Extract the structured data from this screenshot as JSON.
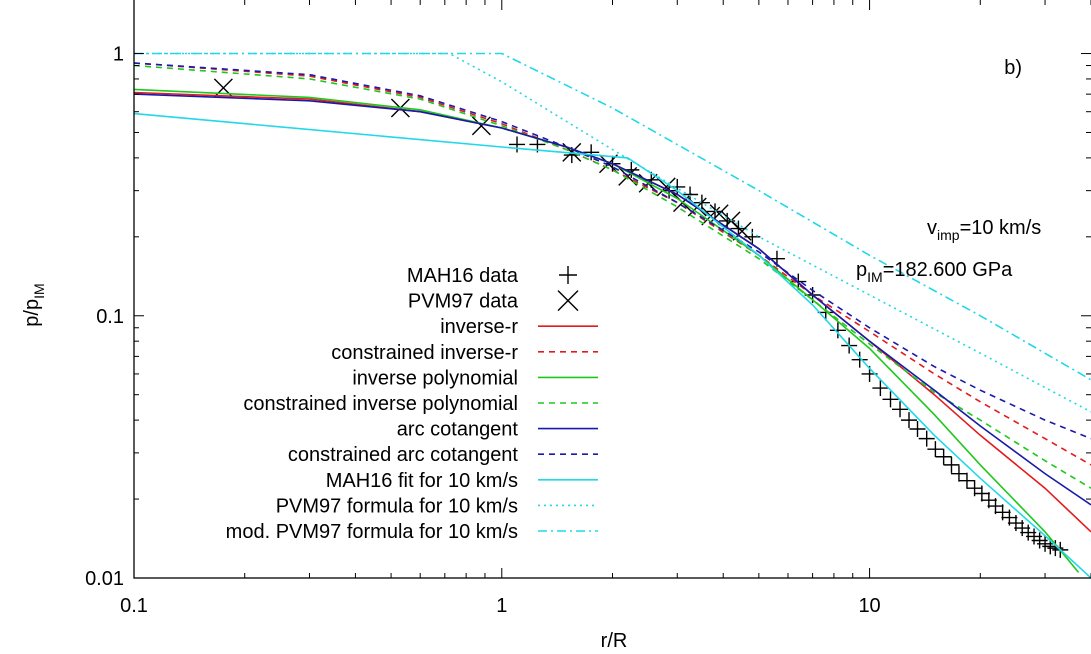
{
  "chart_data": {
    "type": "line",
    "xscale": "log",
    "yscale": "log",
    "xlim": [
      0.1,
      40
    ],
    "ylim": [
      0.01,
      1.6
    ],
    "grid": false,
    "legend_position": "left",
    "xlabel": "r/R",
    "ylabel_main": "p/p",
    "ylabel_sub": "IM",
    "x_ticks": [
      {
        "v": 0.1,
        "label": "0.1"
      },
      {
        "v": 1,
        "label": "1"
      },
      {
        "v": 10,
        "label": "10"
      }
    ],
    "y_ticks": [
      {
        "v": 0.01,
        "label": "0.01"
      },
      {
        "v": 0.1,
        "label": "0.1"
      },
      {
        "v": 1,
        "label": "1"
      }
    ],
    "panel_label": "b)",
    "annotations": {
      "vimp": {
        "main": "v",
        "sub": "imp",
        "rest": "=10 km/s"
      },
      "pim": {
        "main": "p",
        "sub": "IM",
        "rest": "=182.600 GPa"
      }
    },
    "series": [
      {
        "name": "MAH16 data",
        "kind": "points",
        "marker": "plus",
        "color": "#000000",
        "x": [
          1.1,
          1.25,
          1.55,
          1.75,
          2.0,
          2.25,
          2.55,
          2.85,
          3.0,
          3.25,
          3.5,
          3.8,
          4.1,
          4.4,
          4.8,
          5.6,
          6.4,
          7.0,
          7.6,
          8.2,
          8.8,
          9.4,
          10.0,
          10.7,
          11.4,
          12.1,
          12.8,
          13.5,
          14.3,
          15.1,
          15.9,
          16.7,
          17.5,
          18.4,
          19.3,
          20.2,
          21.1,
          22.0,
          23.0,
          24.0,
          25.0,
          26.0,
          27.0,
          28.0,
          29.0,
          30.0,
          31.0,
          32.0,
          33.0
        ],
        "y": [
          0.45,
          0.45,
          0.41,
          0.42,
          0.38,
          0.36,
          0.33,
          0.3,
          0.31,
          0.29,
          0.27,
          0.25,
          0.23,
          0.215,
          0.2,
          0.165,
          0.135,
          0.12,
          0.103,
          0.088,
          0.077,
          0.068,
          0.06,
          0.053,
          0.048,
          0.044,
          0.04,
          0.037,
          0.034,
          0.031,
          0.029,
          0.027,
          0.025,
          0.0235,
          0.022,
          0.021,
          0.0198,
          0.0188,
          0.0178,
          0.017,
          0.0162,
          0.0155,
          0.0149,
          0.0144,
          0.0139,
          0.0135,
          0.0132,
          0.013,
          0.0128
        ]
      },
      {
        "name": "PVM97 data",
        "kind": "points",
        "marker": "cross",
        "color": "#000000",
        "x": [
          0.175,
          0.53,
          0.88,
          1.55,
          1.95,
          2.2,
          2.5,
          2.8,
          3.1,
          3.4,
          3.7,
          3.9,
          4.2,
          4.5
        ],
        "y": [
          0.74,
          0.62,
          0.53,
          0.42,
          0.38,
          0.34,
          0.32,
          0.31,
          0.27,
          0.26,
          0.24,
          0.245,
          0.23,
          0.21
        ]
      },
      {
        "name": "inverse-r",
        "kind": "line",
        "color": "#e41a1c",
        "dash": "",
        "x": [
          0.1,
          0.3,
          0.6,
          1.0,
          1.5,
          2.0,
          3.0,
          5.0,
          7.0,
          10.0,
          15.0,
          20.0,
          30.0,
          40.0
        ],
        "y": [
          0.71,
          0.67,
          0.6,
          0.52,
          0.44,
          0.38,
          0.29,
          0.18,
          0.12,
          0.08,
          0.05,
          0.035,
          0.022,
          0.015
        ]
      },
      {
        "name": "constrained inverse-r",
        "kind": "line",
        "color": "#e41a1c",
        "dash": "6,5",
        "x": [
          0.1,
          0.3,
          0.6,
          1.0,
          1.5,
          2.0,
          3.0,
          5.0,
          7.0,
          10.0,
          15.0,
          20.0,
          30.0,
          40.0
        ],
        "y": [
          0.92,
          0.82,
          0.68,
          0.54,
          0.43,
          0.36,
          0.27,
          0.17,
          0.12,
          0.087,
          0.06,
          0.047,
          0.034,
          0.027
        ]
      },
      {
        "name": "inverse polynomial",
        "kind": "line",
        "color": "#1ec81e",
        "dash": "",
        "x": [
          0.1,
          0.3,
          0.6,
          1.0,
          1.5,
          2.0,
          3.0,
          5.0,
          7.0,
          10.0,
          15.0,
          20.0,
          30.0,
          37.0
        ],
        "y": [
          0.73,
          0.68,
          0.61,
          0.52,
          0.44,
          0.38,
          0.28,
          0.17,
          0.115,
          0.075,
          0.042,
          0.027,
          0.015,
          0.0105
        ]
      },
      {
        "name": "constrained inverse polynomial",
        "kind": "line",
        "color": "#1ec81e",
        "dash": "6,5",
        "x": [
          0.1,
          0.3,
          0.6,
          1.0,
          1.5,
          2.0,
          3.0,
          5.0,
          7.0,
          10.0,
          15.0,
          20.0,
          30.0,
          40.0
        ],
        "y": [
          0.9,
          0.8,
          0.67,
          0.53,
          0.43,
          0.36,
          0.26,
          0.165,
          0.115,
          0.078,
          0.051,
          0.04,
          0.028,
          0.022
        ]
      },
      {
        "name": "arc cotangent",
        "kind": "line",
        "color": "#1a1aaa",
        "dash": "",
        "x": [
          0.1,
          0.3,
          0.6,
          1.0,
          1.5,
          2.0,
          3.0,
          5.0,
          7.0,
          10.0,
          15.0,
          20.0,
          30.0,
          40.0
        ],
        "y": [
          0.7,
          0.66,
          0.6,
          0.52,
          0.44,
          0.38,
          0.29,
          0.18,
          0.12,
          0.08,
          0.052,
          0.038,
          0.025,
          0.019
        ]
      },
      {
        "name": "constrained arc cotangent",
        "kind": "line",
        "color": "#1a1aaa",
        "dash": "6,5",
        "x": [
          0.1,
          0.3,
          0.6,
          1.0,
          1.5,
          2.0,
          3.0,
          5.0,
          7.0,
          10.0,
          15.0,
          20.0,
          30.0,
          40.0
        ],
        "y": [
          0.92,
          0.83,
          0.69,
          0.55,
          0.44,
          0.37,
          0.27,
          0.175,
          0.125,
          0.09,
          0.064,
          0.052,
          0.04,
          0.034
        ]
      },
      {
        "name": "MAH16 fit for 10 km/s",
        "kind": "line",
        "color": "#20d8e8",
        "dash": "",
        "x": [
          0.1,
          1.0,
          2.2,
          3.0,
          5.0,
          7.0,
          10.0,
          15.0,
          20.0,
          30.0,
          40.0
        ],
        "y": [
          0.59,
          0.44,
          0.4,
          0.3,
          0.17,
          0.11,
          0.063,
          0.035,
          0.024,
          0.0145,
          0.01
        ]
      },
      {
        "name": "PVM97 formula for 10 km/s",
        "kind": "line",
        "color": "#20d8e8",
        "dash": "2,4",
        "x": [
          0.1,
          0.72,
          1.0,
          2.0,
          5.0,
          10.0,
          20.0,
          40.0
        ],
        "y": [
          1.0,
          1.0,
          0.78,
          0.43,
          0.2,
          0.12,
          0.072,
          0.043
        ]
      },
      {
        "name": "mod. PVM97 formula for 10 km/s",
        "kind": "line",
        "color": "#20d8e8",
        "dash": "9,4,2,4",
        "x": [
          0.1,
          1.0,
          2.0,
          5.0,
          10.0,
          20.0,
          40.0
        ],
        "y": [
          1.0,
          1.0,
          0.62,
          0.3,
          0.17,
          0.1,
          0.057
        ]
      }
    ]
  }
}
